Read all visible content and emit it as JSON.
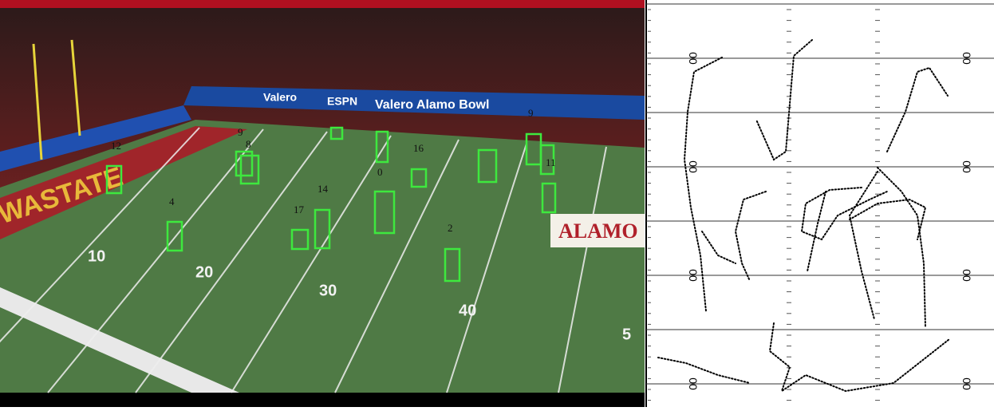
{
  "scene": {
    "banner": "Valero Alamo Bowl",
    "sponsor": "Valero",
    "network": "ESPN",
    "end_zone": "WASTATE",
    "logo": "ALAMO",
    "yard_numbers": [
      "10",
      "20",
      "30",
      "40",
      "5"
    ],
    "player_ids": [
      "12",
      "9",
      "8",
      "16",
      "0",
      "9",
      "11",
      "4",
      "14",
      "17",
      "2"
    ]
  },
  "plot": {
    "yard_labels": [
      "00",
      "00",
      "00",
      "00",
      "00",
      "00",
      "00",
      "00"
    ]
  }
}
